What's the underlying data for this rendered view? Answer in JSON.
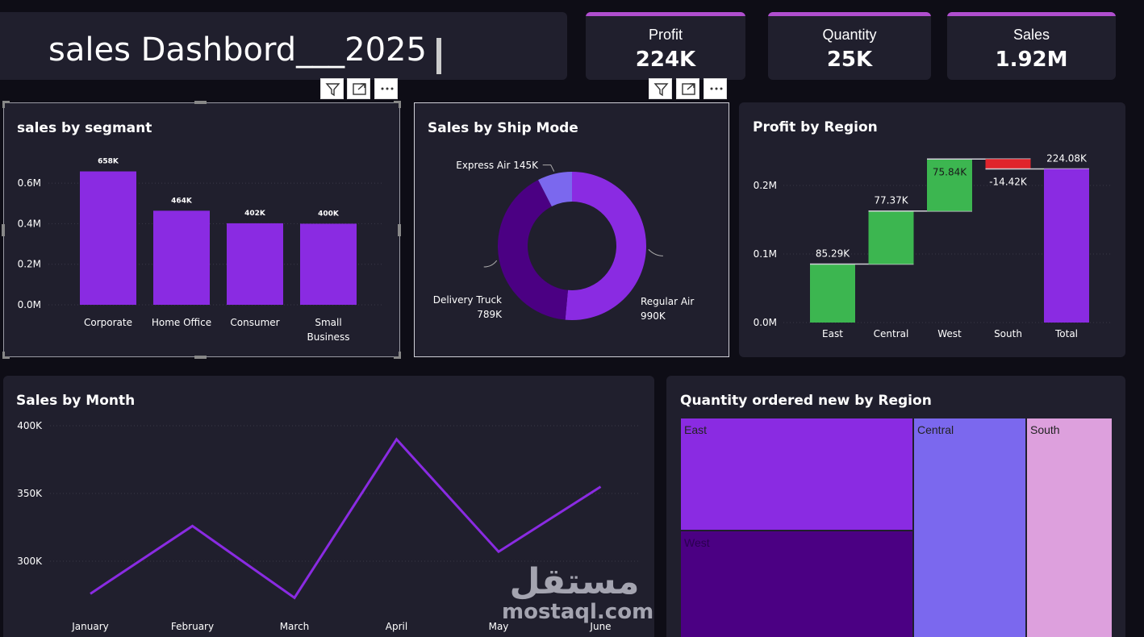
{
  "header": {
    "title": "sales Dashbord___2025"
  },
  "kpis": [
    {
      "label": "Profit",
      "value": "224K"
    },
    {
      "label": "Quantity",
      "value": "25K"
    },
    {
      "label": "Sales",
      "value": "1.92M"
    }
  ],
  "colors": {
    "purple": "#8a2be2",
    "green": "#3cb650",
    "red": "#e0242c",
    "light_purple": "#7b68ee",
    "dark_purple": "#4b0083",
    "pink": "#dda0dd",
    "accent": "#b04ecf"
  },
  "icons": [
    "filter-icon",
    "focus-mode-icon",
    "more-options-icon"
  ],
  "watermark": {
    "main": "مستقل",
    "sub": "mostaql.com"
  },
  "chart_data": [
    {
      "type": "bar",
      "title": "sales by segmant",
      "categories": [
        "Corporate",
        "Home Office",
        "Consumer",
        "Small Business"
      ],
      "category_lines": [
        [
          "Corporate"
        ],
        [
          "Home Office"
        ],
        [
          "Consumer"
        ],
        [
          "Small",
          "Business"
        ]
      ],
      "values": [
        658000,
        464000,
        402000,
        400000
      ],
      "data_labels": [
        "658K",
        "464K",
        "402K",
        "400K"
      ],
      "yticks": [
        "0.0M",
        "0.2M",
        "0.4M",
        "0.6M"
      ],
      "ytick_values": [
        0,
        200000,
        400000,
        600000
      ],
      "ylim": [
        0,
        700000
      ]
    },
    {
      "type": "pie",
      "title": "Sales by Ship Mode",
      "categories": [
        "Regular Air",
        "Delivery Truck",
        "Express Air"
      ],
      "values": [
        990000,
        789000,
        145000
      ],
      "data_labels": [
        "990K",
        "789K",
        "145K"
      ]
    },
    {
      "type": "bar",
      "subtype": "waterfall",
      "title": "Profit by Region",
      "categories": [
        "East",
        "Central",
        "West",
        "South",
        "Total"
      ],
      "values": [
        85290,
        77370,
        75840,
        -14420,
        224080
      ],
      "data_labels": [
        "85.29K",
        "77.37K",
        "75.84K",
        "-14.42K",
        "224.08K"
      ],
      "yticks": [
        "0.0M",
        "0.1M",
        "0.2M"
      ],
      "ytick_values": [
        0,
        100000,
        200000
      ],
      "ylim": [
        0,
        250000
      ]
    },
    {
      "type": "line",
      "title": "Sales by Month",
      "categories": [
        "January",
        "February",
        "March",
        "April",
        "May",
        "June"
      ],
      "values": [
        276000,
        326000,
        273000,
        390000,
        307000,
        355000
      ],
      "yticks": [
        "300K",
        "350K",
        "400K"
      ],
      "ytick_values": [
        300000,
        350000,
        400000
      ],
      "ylim": [
        262000,
        402000
      ]
    },
    {
      "type": "heatmap",
      "subtype": "treemap",
      "title": "Quantity ordered new by Region",
      "categories": [
        "East",
        "West",
        "Central",
        "South"
      ]
    }
  ]
}
